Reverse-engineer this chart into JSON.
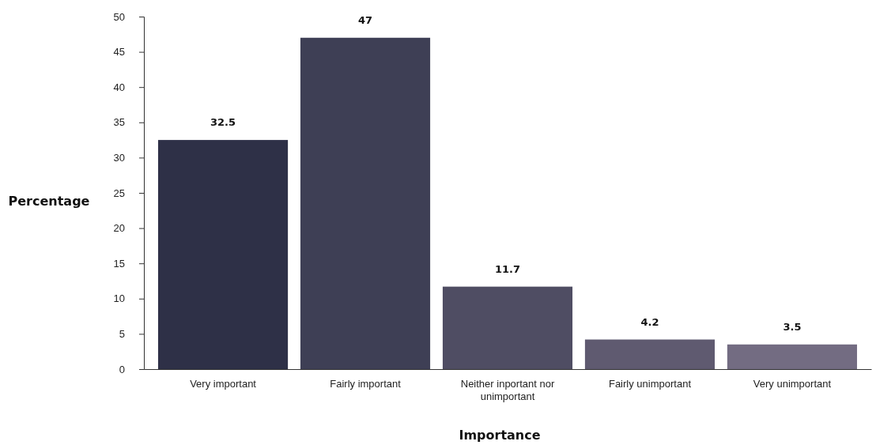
{
  "chart_data": {
    "type": "bar",
    "xlabel": "Importance",
    "ylabel": "Percentage",
    "categories": [
      "Very important",
      "Fairly important",
      "Neither inportant nor unimportant",
      "Fairly unimportant",
      "Very unimportant"
    ],
    "values": [
      32.5,
      47,
      11.7,
      4.2,
      3.5
    ],
    "colors": [
      "#2e3047",
      "#3e3f55",
      "#4f4d63",
      "#5f5a70",
      "#736c82"
    ],
    "ylim": [
      0,
      50
    ],
    "yticks": [
      0,
      5,
      10,
      15,
      20,
      25,
      30,
      35,
      40,
      45,
      50
    ],
    "data_labels": true
  }
}
